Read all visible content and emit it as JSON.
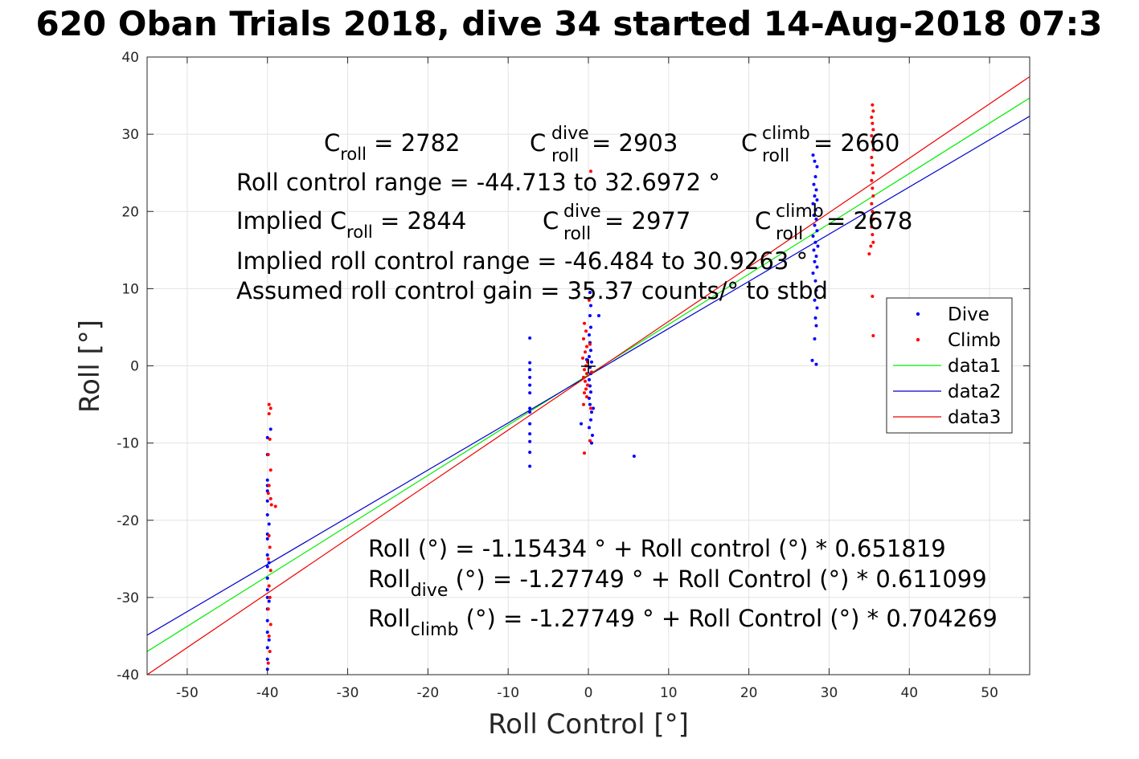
{
  "title": "620 Oban Trials 2018, dive 34 started 14-Aug-2018 07:3",
  "chart_data": {
    "type": "scatter",
    "xlabel": "Roll Control [°]",
    "ylabel": "Roll [°]",
    "xlim": [
      -55,
      55
    ],
    "ylim": [
      -40,
      40
    ],
    "xticks": [
      -50,
      -40,
      -30,
      -20,
      -10,
      0,
      10,
      20,
      30,
      40,
      50
    ],
    "yticks": [
      -40,
      -30,
      -20,
      -10,
      0,
      10,
      20,
      30,
      40
    ],
    "grid": true,
    "legend": {
      "placement": "right",
      "entries": [
        "Dive",
        "Climb",
        "data1",
        "data2",
        "data3"
      ]
    },
    "annotations_top": {
      "c_roll_label": "C",
      "c_roll_sub": "roll",
      "c_roll_value": " = 2782",
      "c_dive_label": "C",
      "c_dive_sub": "roll",
      "c_dive_sup": "dive",
      "c_dive_value": " = 2903",
      "c_climb_label": "C",
      "c_climb_sub": "roll",
      "c_climb_sup": "climb",
      "c_climb_value": " = 2660",
      "range_line": "Roll control range = -44.713 to 32.6972 °",
      "implied_prefix": "Implied C",
      "implied_sub": "roll",
      "implied_value": " = 2844",
      "implied_dive_label": "C",
      "implied_dive_sub": "roll",
      "implied_dive_sup": "dive",
      "implied_dive_value": " = 2977",
      "implied_climb_label": "C",
      "implied_climb_sub": "roll",
      "implied_climb_sup": "climb",
      "implied_climb_value": " = 2678",
      "implied_range_line": "Implied roll control range = -46.484 to 30.9263 °",
      "gain_line": "Assumed roll control gain = 35.37 counts/° to stbd"
    },
    "annotations_bottom": {
      "fit_all": "Roll (°) = -1.15434 ° + Roll control (°) * 0.651819",
      "fit_dive_prefix": "Roll",
      "fit_dive_sub": "dive",
      "fit_dive_rest": " (°) = -1.27749 ° + Roll Control (°) * 0.611099",
      "fit_climb_prefix": "Roll",
      "fit_climb_sub": "climb",
      "fit_climb_rest": " (°) = -1.27749 ° + Roll Control (°) * 0.704269"
    },
    "fit_lines": [
      {
        "name": "data1",
        "color": "#00ee00",
        "intercept": -1.15434,
        "slope": 0.651819
      },
      {
        "name": "data2",
        "color": "#0000cc",
        "intercept": -1.27749,
        "slope": 0.611099
      },
      {
        "name": "data3",
        "color": "#ee0000",
        "intercept": -1.27749,
        "slope": 0.704269
      }
    ],
    "series": [
      {
        "name": "Dive",
        "color": "#0000ff",
        "points": [
          [
            -40,
            -9.3
          ],
          [
            -40,
            -11.5
          ],
          [
            -40,
            -14.8
          ],
          [
            -40,
            -15.5
          ],
          [
            -40,
            -16.2
          ],
          [
            -40,
            -17.5
          ],
          [
            -40,
            -19.3
          ],
          [
            -40,
            -21.8
          ],
          [
            -40,
            -22.4
          ],
          [
            -40,
            -24.5
          ],
          [
            -40,
            -26
          ],
          [
            -40,
            -27.5
          ],
          [
            -40,
            -29
          ],
          [
            -40,
            -30
          ],
          [
            -40,
            -31.5
          ],
          [
            -40,
            -33
          ],
          [
            -40,
            -34.5
          ],
          [
            -40,
            -36.5
          ],
          [
            -40,
            -38
          ],
          [
            -40,
            -39.3
          ],
          [
            -39.6,
            -8.2
          ],
          [
            -39.8,
            -20.5
          ],
          [
            -39.8,
            -25.5
          ],
          [
            -39.8,
            -30.5
          ],
          [
            -39.8,
            -35.5
          ],
          [
            -7.3,
            3.6
          ],
          [
            -7.3,
            0.4
          ],
          [
            -7.3,
            -0.5
          ],
          [
            -7.3,
            -1.5
          ],
          [
            -7.3,
            -2.5
          ],
          [
            -7.3,
            -3.5
          ],
          [
            -7.3,
            -5.5
          ],
          [
            -7.3,
            -6
          ],
          [
            -7.3,
            -7.5
          ],
          [
            -7.3,
            -8.8
          ],
          [
            -7.3,
            -9.8
          ],
          [
            -7.3,
            -11.2
          ],
          [
            -7.3,
            -13
          ],
          [
            0.2,
            9.5
          ],
          [
            0.3,
            7.8
          ],
          [
            0.2,
            6.5
          ],
          [
            0.3,
            5
          ],
          [
            0.1,
            4
          ],
          [
            0.2,
            3
          ],
          [
            0.3,
            2
          ],
          [
            0.1,
            1.2
          ],
          [
            0.4,
            0.5
          ],
          [
            0.2,
            -0.2
          ],
          [
            0.3,
            -1
          ],
          [
            0.1,
            -1.8
          ],
          [
            0.2,
            -2.6
          ],
          [
            0.3,
            -3.4
          ],
          [
            0.1,
            -4.2
          ],
          [
            0.2,
            -5
          ],
          [
            0.4,
            -6
          ],
          [
            0.3,
            -7
          ],
          [
            0.1,
            -8
          ],
          [
            0.5,
            -9
          ],
          [
            0.4,
            -10
          ],
          [
            -0.2,
            0.8
          ],
          [
            0.6,
            -5.5
          ],
          [
            1.3,
            6.5
          ],
          [
            -0.9,
            -7.5
          ],
          [
            5.7,
            -11.7
          ],
          [
            28,
            27.3
          ],
          [
            28.2,
            26.5
          ],
          [
            28.5,
            25.8
          ],
          [
            28.3,
            24.5
          ],
          [
            28.1,
            23.5
          ],
          [
            28.4,
            22.8
          ],
          [
            28.2,
            22
          ],
          [
            28.5,
            21.5
          ],
          [
            28,
            21
          ],
          [
            28.3,
            20.2
          ],
          [
            28.1,
            19.5
          ],
          [
            28.4,
            19
          ],
          [
            28.2,
            18.2
          ],
          [
            28.5,
            17.5
          ],
          [
            28,
            16.8
          ],
          [
            28.3,
            16
          ],
          [
            28.6,
            15.5
          ],
          [
            28.1,
            15
          ],
          [
            28.4,
            14.2
          ],
          [
            28.2,
            13.5
          ],
          [
            28.5,
            12.8
          ],
          [
            28,
            12
          ],
          [
            28.3,
            11
          ],
          [
            28.4,
            9.8
          ],
          [
            28.2,
            8.5
          ],
          [
            28.5,
            7.5
          ],
          [
            28.3,
            6.2
          ],
          [
            28.4,
            5.2
          ],
          [
            28.2,
            3.5
          ],
          [
            27.9,
            0.7
          ],
          [
            28.4,
            0.2
          ]
        ]
      },
      {
        "name": "Climb",
        "color": "#ff0000",
        "points": [
          [
            -39.8,
            -5
          ],
          [
            -39.6,
            -5.5
          ],
          [
            -39.8,
            -6.2
          ],
          [
            -39.7,
            -9.5
          ],
          [
            -39.9,
            -11.5
          ],
          [
            -39.6,
            -13.5
          ],
          [
            -39.8,
            -15.5
          ],
          [
            -39.9,
            -16.5
          ],
          [
            -39.6,
            -17.2
          ],
          [
            -39.5,
            -18
          ],
          [
            -39,
            -18.2
          ],
          [
            -39.8,
            -22
          ],
          [
            -39.7,
            -23.5
          ],
          [
            -39.9,
            -25
          ],
          [
            -39.6,
            -26.5
          ],
          [
            -39.8,
            -28.5
          ],
          [
            -39.7,
            -30
          ],
          [
            -39.9,
            -31.5
          ],
          [
            -39.6,
            -33.5
          ],
          [
            -39.8,
            -35
          ],
          [
            -39.7,
            -37
          ],
          [
            -39.9,
            -38.5
          ],
          [
            -0.5,
            5.5
          ],
          [
            -0.3,
            4.5
          ],
          [
            -0.6,
            3.5
          ],
          [
            -0.2,
            2.5
          ],
          [
            -0.4,
            1.8
          ],
          [
            -0.7,
            1
          ],
          [
            -0.1,
            0.5
          ],
          [
            -0.3,
            0
          ],
          [
            -0.5,
            -0.5
          ],
          [
            -0.2,
            -1
          ],
          [
            -0.6,
            -1.5
          ],
          [
            -0.4,
            -2
          ],
          [
            -0.1,
            -2.5
          ],
          [
            -0.3,
            -3
          ],
          [
            -0.5,
            -3.5
          ],
          [
            -0.2,
            -4
          ],
          [
            -0.6,
            -5
          ],
          [
            0.3,
            -5.5
          ],
          [
            0.1,
            8.5
          ],
          [
            0.2,
            2.8
          ],
          [
            0.4,
            -0.8
          ],
          [
            -0.5,
            -11.3
          ],
          [
            0.2,
            -9.7
          ],
          [
            0.3,
            25.2
          ],
          [
            35.4,
            33.8
          ],
          [
            35.5,
            33
          ],
          [
            35.3,
            32.2
          ],
          [
            35.4,
            31.4
          ],
          [
            35.5,
            30.6
          ],
          [
            35.3,
            29.8
          ],
          [
            35.4,
            29
          ],
          [
            35.5,
            28
          ],
          [
            35.3,
            27
          ],
          [
            35.4,
            26
          ],
          [
            35.5,
            25
          ],
          [
            35.3,
            24
          ],
          [
            35.4,
            23
          ],
          [
            35.5,
            22
          ],
          [
            35.3,
            21
          ],
          [
            35.4,
            20
          ],
          [
            35.5,
            19
          ],
          [
            35.3,
            18
          ],
          [
            35.4,
            17
          ],
          [
            35.5,
            16
          ],
          [
            35.2,
            15.5
          ],
          [
            35,
            14.5
          ],
          [
            35.4,
            9
          ],
          [
            35.5,
            3.9
          ]
        ]
      }
    ]
  }
}
